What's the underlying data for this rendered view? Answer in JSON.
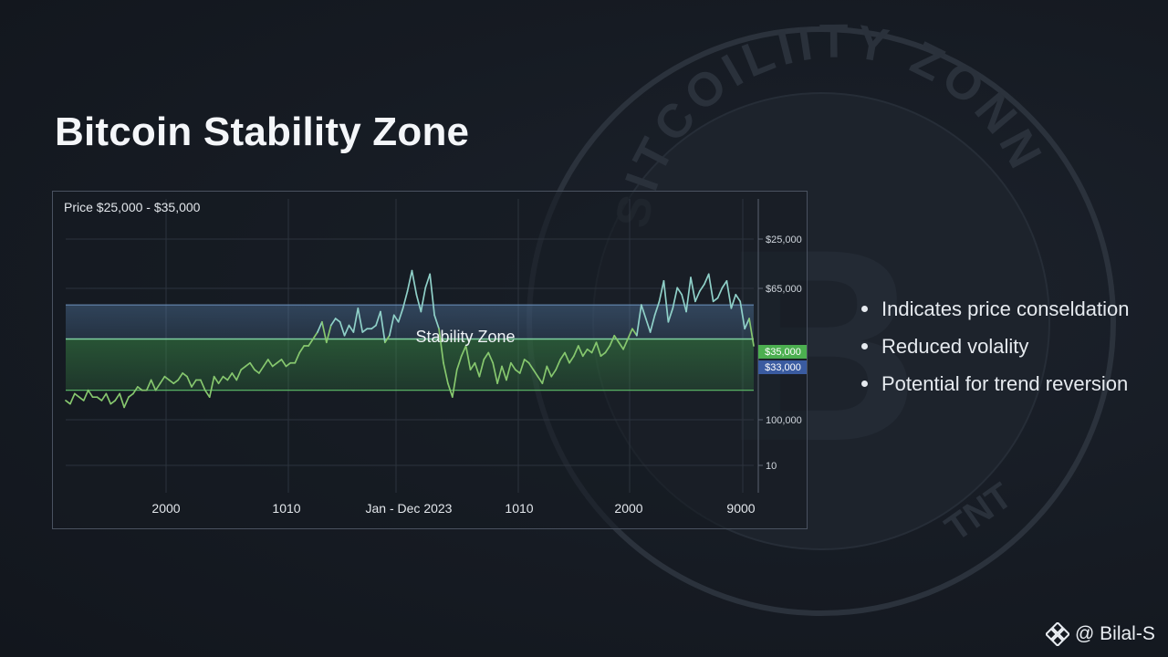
{
  "title": "Bitcoin Stability Zone",
  "watermark": {
    "arc_text": "SITCOILIITY ZONN",
    "bottom_text": "TNT",
    "glyph": "B"
  },
  "chart_data": {
    "type": "line",
    "title": "Price $25,000 - $35,000",
    "band_label": "Stability Zone",
    "x_tick_labels": [
      "2000",
      "1010",
      "Jan - Dec 2023",
      "1010",
      "2000",
      "9000"
    ],
    "y_tick_labels": [
      "$25,000",
      "$65,000",
      "100,000",
      "10"
    ],
    "badges": [
      {
        "label": "$35,000",
        "color": "#4caf50"
      },
      {
        "label": "$33,000",
        "color": "#3a5ba0"
      }
    ],
    "zones": [
      {
        "name": "upper",
        "y_from": 4.5,
        "y_to": 5.5,
        "color": "#5b86b5"
      },
      {
        "name": "lower",
        "y_from": 3.0,
        "y_to": 4.5,
        "color": "#3f9a4c"
      }
    ],
    "ylim": [
      0,
      8.6
    ],
    "xlim": [
      0,
      150
    ],
    "grid": true,
    "series": [
      {
        "values": [
          2.7,
          2.6,
          2.9,
          2.8,
          2.7,
          3.0,
          2.8,
          2.8,
          2.7,
          2.9,
          2.6,
          2.7,
          2.9,
          2.5,
          2.8,
          2.9,
          3.1,
          3.0,
          3.0,
          3.3,
          3.0,
          3.2,
          3.4,
          3.3,
          3.2,
          3.3,
          3.5,
          3.4,
          3.1,
          3.3,
          3.3,
          3.0,
          2.8,
          3.4,
          3.2,
          3.4,
          3.3,
          3.5,
          3.3,
          3.6,
          3.7,
          3.8,
          3.6,
          3.5,
          3.7,
          3.9,
          3.7,
          3.8,
          3.9,
          3.7,
          3.8,
          3.8,
          4.1,
          4.3,
          4.3,
          4.5,
          4.7,
          5.0,
          4.4,
          4.9,
          5.1,
          5.0,
          4.6,
          4.9,
          4.7,
          5.4,
          4.7,
          4.8,
          4.8,
          4.9,
          5.3,
          4.4,
          4.6,
          5.2,
          5.0,
          5.4,
          5.9,
          6.5,
          5.8,
          5.3,
          6.0,
          6.4,
          5.2,
          4.8,
          3.8,
          3.2,
          2.8,
          3.6,
          4.0,
          4.3,
          3.6,
          3.8,
          3.4,
          3.9,
          4.1,
          3.8,
          3.2,
          3.7,
          3.3,
          3.8,
          3.6,
          3.5,
          3.9,
          3.8,
          3.6,
          3.4,
          3.2,
          3.7,
          3.4,
          3.6,
          3.9,
          4.1,
          3.8,
          4.0,
          4.3,
          4.0,
          4.2,
          4.1,
          4.4,
          4.0,
          4.1,
          4.3,
          4.6,
          4.4,
          4.2,
          4.5,
          4.8,
          4.6,
          5.5,
          5.1,
          4.7,
          5.2,
          5.6,
          6.2,
          5.0,
          5.4,
          6.0,
          5.8,
          5.3,
          6.3,
          5.6,
          5.9,
          6.1,
          6.4,
          5.6,
          5.7,
          6.0,
          6.2,
          5.4,
          5.8,
          5.6,
          4.8,
          5.1,
          4.3
        ],
        "color": "#86c76e"
      }
    ]
  },
  "bullets": [
    "Indicates price conseldation",
    "Reduced volality",
    "Potential for trend reversion"
  ],
  "credit": {
    "text": "@ Bilal-S",
    "icon": "binance-diamond-icon"
  }
}
